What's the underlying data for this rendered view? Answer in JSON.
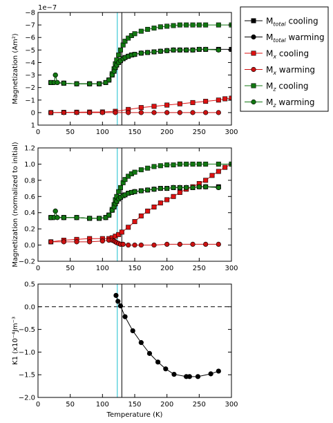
{
  "chart_data": [
    {
      "type": "line",
      "panel": "top",
      "xlabel": "",
      "ylabel": "Magnetization (Am²)",
      "offset_text": "1e−7",
      "xlim": [
        0,
        300
      ],
      "ylim": [
        1,
        -8
      ],
      "x_ticks": [
        0,
        50,
        100,
        150,
        200,
        250,
        300
      ],
      "y_ticks": [
        -8,
        -7,
        -6,
        -5,
        -4,
        -3,
        -2,
        -1,
        0,
        1
      ],
      "y_tick_labels": [
        "−8",
        "−7",
        "−6",
        "−5",
        "−4",
        "−3",
        "−2",
        "−1",
        "0",
        "1"
      ],
      "grid": false,
      "vertical_lines": [
        {
          "x": 123,
          "color": "#17becf"
        },
        {
          "x": 130,
          "color": "#000000"
        }
      ],
      "series": [
        {
          "name": "M_total cooling",
          "color": "#000000",
          "marker": "square",
          "x": [
            20,
            40,
            60,
            80,
            95,
            105,
            110,
            115,
            118,
            120,
            122,
            125,
            128,
            132,
            135,
            140,
            145,
            150,
            160,
            170,
            180,
            190,
            200,
            210,
            220,
            230,
            240,
            250,
            260,
            280,
            300
          ],
          "y": [
            -2.4,
            -2.35,
            -2.3,
            -2.3,
            -2.3,
            -2.4,
            -2.6,
            -3.0,
            -3.3,
            -3.6,
            -3.8,
            -4.0,
            -4.15,
            -4.3,
            -4.4,
            -4.5,
            -4.6,
            -4.65,
            -4.75,
            -4.8,
            -4.85,
            -4.9,
            -4.95,
            -5.0,
            -5.0,
            -5.0,
            -5.0,
            -5.05,
            -5.05,
            -5.05,
            -5.05
          ]
        },
        {
          "name": "M_total warming",
          "color": "#000000",
          "marker": "circle",
          "x": [
            20,
            25,
            27,
            30,
            40,
            60,
            80,
            95,
            105,
            110,
            115,
            118,
            120,
            122,
            125,
            128,
            132,
            135,
            140,
            145,
            150,
            160,
            170,
            180,
            190,
            200,
            210,
            220,
            230,
            240,
            250,
            260,
            280
          ],
          "y": [
            -2.4,
            -2.4,
            -3.0,
            -2.4,
            -2.35,
            -2.3,
            -2.3,
            -2.3,
            -2.4,
            -2.6,
            -3.0,
            -3.3,
            -3.6,
            -3.8,
            -4.0,
            -4.15,
            -4.3,
            -4.4,
            -4.5,
            -4.6,
            -4.65,
            -4.75,
            -4.8,
            -4.85,
            -4.9,
            -4.95,
            -5.0,
            -5.0,
            -5.0,
            -5.0,
            -5.05,
            -5.05,
            -5.0
          ]
        },
        {
          "name": "M_x cooling",
          "color": "#dd1111",
          "marker": "square",
          "x": [
            20,
            40,
            60,
            80,
            100,
            120,
            140,
            160,
            180,
            200,
            220,
            240,
            260,
            280,
            290,
            300
          ],
          "y": [
            0.0,
            -0.02,
            -0.03,
            -0.04,
            -0.05,
            -0.1,
            -0.25,
            -0.4,
            -0.5,
            -0.6,
            -0.7,
            -0.8,
            -0.9,
            -1.0,
            -1.1,
            -1.15
          ]
        },
        {
          "name": "M_x warming",
          "color": "#cc1111",
          "marker": "circle",
          "x": [
            20,
            40,
            60,
            80,
            100,
            120,
            140,
            160,
            180,
            200,
            220,
            240,
            260,
            280
          ],
          "y": [
            0.0,
            0.0,
            0.0,
            0.0,
            0.0,
            0.0,
            0.0,
            0.0,
            0.0,
            0.0,
            0.0,
            0.0,
            0.0,
            0.0
          ]
        },
        {
          "name": "M_z cooling",
          "color": "#117711",
          "marker": "square",
          "x": [
            20,
            40,
            60,
            80,
            95,
            105,
            110,
            115,
            118,
            120,
            122,
            125,
            128,
            132,
            135,
            140,
            145,
            150,
            160,
            170,
            180,
            190,
            200,
            210,
            220,
            230,
            240,
            250,
            260,
            280,
            300
          ],
          "y": [
            -2.4,
            -2.35,
            -2.3,
            -2.3,
            -2.3,
            -2.4,
            -2.6,
            -3.1,
            -3.5,
            -3.9,
            -4.2,
            -4.6,
            -5.0,
            -5.4,
            -5.7,
            -5.95,
            -6.15,
            -6.3,
            -6.5,
            -6.65,
            -6.75,
            -6.85,
            -6.9,
            -6.95,
            -7.0,
            -7.0,
            -7.0,
            -7.0,
            -7.0,
            -7.0,
            -7.0
          ]
        },
        {
          "name": "M_z warming",
          "color": "#117711",
          "marker": "circle",
          "x": [
            20,
            25,
            27,
            30,
            40,
            60,
            80,
            95,
            105,
            110,
            115,
            118,
            120,
            122,
            125,
            128,
            132,
            135,
            140,
            145,
            150,
            160,
            170,
            180,
            190,
            200,
            210,
            220,
            230,
            240,
            250,
            260,
            280
          ],
          "y": [
            -2.4,
            -2.4,
            -3.0,
            -2.4,
            -2.35,
            -2.3,
            -2.3,
            -2.3,
            -2.4,
            -2.6,
            -3.0,
            -3.3,
            -3.6,
            -3.8,
            -4.0,
            -4.15,
            -4.3,
            -4.4,
            -4.5,
            -4.6,
            -4.65,
            -4.75,
            -4.8,
            -4.85,
            -4.9,
            -4.95,
            -5.0,
            -5.0,
            -5.0,
            -5.0,
            -5.05,
            -5.05,
            -5.0
          ]
        }
      ]
    },
    {
      "type": "line",
      "panel": "middle",
      "xlabel": "",
      "ylabel": "Magnetization (normalized to initial)",
      "xlim": [
        0,
        300
      ],
      "ylim": [
        -0.2,
        1.2
      ],
      "x_ticks": [
        0,
        50,
        100,
        150,
        200,
        250,
        300
      ],
      "y_ticks": [
        -0.2,
        0.0,
        0.2,
        0.4,
        0.6,
        0.8,
        1.0,
        1.2
      ],
      "y_tick_labels": [
        "−0.2",
        "0.0",
        "0.2",
        "0.4",
        "0.6",
        "0.8",
        "1.0",
        "1.2"
      ],
      "grid": false,
      "vertical_lines": [
        {
          "x": 123,
          "color": "#17becf"
        },
        {
          "x": 130,
          "color": "#000000"
        }
      ],
      "series": [
        {
          "name": "M_total cooling",
          "color": "#000000",
          "marker": "square",
          "x": [
            20,
            40,
            60,
            80,
            95,
            105,
            110,
            115,
            118,
            120,
            122,
            125,
            128,
            132,
            135,
            140,
            145,
            150,
            160,
            170,
            180,
            190,
            200,
            210,
            220,
            230,
            240,
            250,
            260,
            280
          ],
          "y": [
            0.34,
            0.34,
            0.34,
            0.33,
            0.33,
            0.34,
            0.37,
            0.43,
            0.47,
            0.51,
            0.54,
            0.57,
            0.59,
            0.61,
            0.62,
            0.64,
            0.65,
            0.66,
            0.67,
            0.68,
            0.69,
            0.7,
            0.7,
            0.71,
            0.71,
            0.71,
            0.71,
            0.72,
            0.72,
            0.72
          ]
        },
        {
          "name": "M_total warming",
          "color": "#000000",
          "marker": "circle",
          "x": [
            20,
            25,
            27,
            30,
            40,
            60,
            80,
            95,
            105,
            110,
            115,
            118,
            120,
            122,
            125,
            128,
            132,
            135,
            140,
            145,
            150,
            160,
            170,
            180,
            190,
            200,
            210,
            220,
            230,
            240,
            250,
            260,
            280
          ],
          "y": [
            0.34,
            0.34,
            0.42,
            0.34,
            0.34,
            0.34,
            0.33,
            0.33,
            0.34,
            0.37,
            0.43,
            0.47,
            0.51,
            0.54,
            0.57,
            0.59,
            0.61,
            0.62,
            0.64,
            0.65,
            0.66,
            0.67,
            0.68,
            0.69,
            0.7,
            0.7,
            0.71,
            0.71,
            0.71,
            0.71,
            0.72,
            0.72,
            0.71
          ]
        },
        {
          "name": "M_x cooling",
          "color": "#dd1111",
          "marker": "square",
          "x": [
            20,
            40,
            60,
            80,
            100,
            110,
            115,
            120,
            125,
            130,
            140,
            150,
            160,
            170,
            180,
            190,
            200,
            210,
            220,
            230,
            240,
            250,
            260,
            270,
            280,
            290,
            300
          ],
          "y": [
            0.04,
            0.06,
            0.07,
            0.08,
            0.08,
            0.08,
            0.09,
            0.11,
            0.13,
            0.16,
            0.22,
            0.29,
            0.36,
            0.42,
            0.47,
            0.52,
            0.56,
            0.6,
            0.65,
            0.69,
            0.72,
            0.76,
            0.8,
            0.86,
            0.91,
            0.96,
            1.0
          ]
        },
        {
          "name": "M_x warming",
          "color": "#cc1111",
          "marker": "circle",
          "x": [
            20,
            40,
            60,
            80,
            100,
            110,
            115,
            118,
            120,
            122,
            125,
            128,
            132,
            140,
            150,
            160,
            180,
            200,
            220,
            240,
            260,
            280
          ],
          "y": [
            0.04,
            0.04,
            0.04,
            0.04,
            0.05,
            0.06,
            0.06,
            0.05,
            0.04,
            0.03,
            0.02,
            0.01,
            0.01,
            0.0,
            0.0,
            0.0,
            0.0,
            0.01,
            0.01,
            0.01,
            0.01,
            0.01
          ]
        },
        {
          "name": "M_z cooling",
          "color": "#117711",
          "marker": "square",
          "x": [
            20,
            40,
            60,
            80,
            95,
            105,
            110,
            115,
            118,
            120,
            122,
            125,
            128,
            132,
            135,
            140,
            145,
            150,
            160,
            170,
            180,
            190,
            200,
            210,
            220,
            230,
            240,
            250,
            260,
            280,
            300
          ],
          "y": [
            0.34,
            0.34,
            0.34,
            0.33,
            0.33,
            0.34,
            0.37,
            0.44,
            0.5,
            0.56,
            0.6,
            0.66,
            0.71,
            0.77,
            0.81,
            0.85,
            0.88,
            0.9,
            0.93,
            0.95,
            0.97,
            0.98,
            0.99,
            0.99,
            1.0,
            1.0,
            1.0,
            1.0,
            1.0,
            1.0,
            1.0
          ]
        },
        {
          "name": "M_z warming",
          "color": "#117711",
          "marker": "circle",
          "x": [
            20,
            25,
            27,
            30,
            40,
            60,
            80,
            95,
            105,
            110,
            115,
            118,
            120,
            122,
            125,
            128,
            132,
            135,
            140,
            145,
            150,
            160,
            170,
            180,
            190,
            200,
            210,
            220,
            230,
            240,
            250,
            260,
            280
          ],
          "y": [
            0.34,
            0.34,
            0.42,
            0.34,
            0.34,
            0.34,
            0.33,
            0.33,
            0.34,
            0.37,
            0.43,
            0.47,
            0.51,
            0.54,
            0.57,
            0.59,
            0.61,
            0.62,
            0.64,
            0.65,
            0.66,
            0.67,
            0.68,
            0.69,
            0.7,
            0.7,
            0.71,
            0.71,
            0.71,
            0.71,
            0.72,
            0.72,
            0.71
          ]
        }
      ]
    },
    {
      "type": "line",
      "panel": "bottom",
      "xlabel": "Temperature (K)",
      "ylabel": "K1 (x10⁻⁴Jm⁻³",
      "xlim": [
        0,
        300
      ],
      "ylim": [
        -2.0,
        0.5
      ],
      "x_ticks": [
        0,
        50,
        100,
        150,
        200,
        250,
        300
      ],
      "y_ticks": [
        -2.0,
        -1.5,
        -1.0,
        -0.5,
        0.0,
        0.5
      ],
      "y_tick_labels": [
        "−2.0",
        "−1.5",
        "−1.0",
        "−0.5",
        "0.0",
        "0.5"
      ],
      "grid": false,
      "vertical_lines": [
        {
          "x": 123,
          "color": "#17becf"
        },
        {
          "x": 130,
          "color": "#000000"
        }
      ],
      "hline": {
        "y": 0.0,
        "style": "dashed"
      },
      "series": [
        {
          "name": "K1",
          "color": "#000000",
          "marker": "circle",
          "x": [
            121,
            124,
            128,
            135,
            147,
            160,
            173,
            186,
            198,
            211,
            230,
            235,
            248,
            268,
            280
          ],
          "y": [
            0.25,
            0.12,
            0.02,
            -0.22,
            -0.53,
            -0.79,
            -1.03,
            -1.22,
            -1.37,
            -1.49,
            -1.54,
            -1.54,
            -1.54,
            -1.48,
            -1.42
          ]
        }
      ]
    }
  ],
  "legend": {
    "entries": [
      {
        "base": "M",
        "sub": "total",
        "suffix": " cooling",
        "color": "#000000",
        "marker": "square"
      },
      {
        "base": "M",
        "sub": "total",
        "suffix": " warming",
        "color": "#000000",
        "marker": "circle"
      },
      {
        "base": "M",
        "sub": "x",
        "suffix": " cooling",
        "color": "#dd1111",
        "marker": "square"
      },
      {
        "base": "M",
        "sub": "x",
        "suffix": " warming",
        "color": "#cc1111",
        "marker": "circle"
      },
      {
        "base": "M",
        "sub": "z",
        "suffix": " cooling",
        "color": "#117711",
        "marker": "square"
      },
      {
        "base": "M",
        "sub": "z",
        "suffix": " warming",
        "color": "#117711",
        "marker": "circle"
      }
    ]
  }
}
